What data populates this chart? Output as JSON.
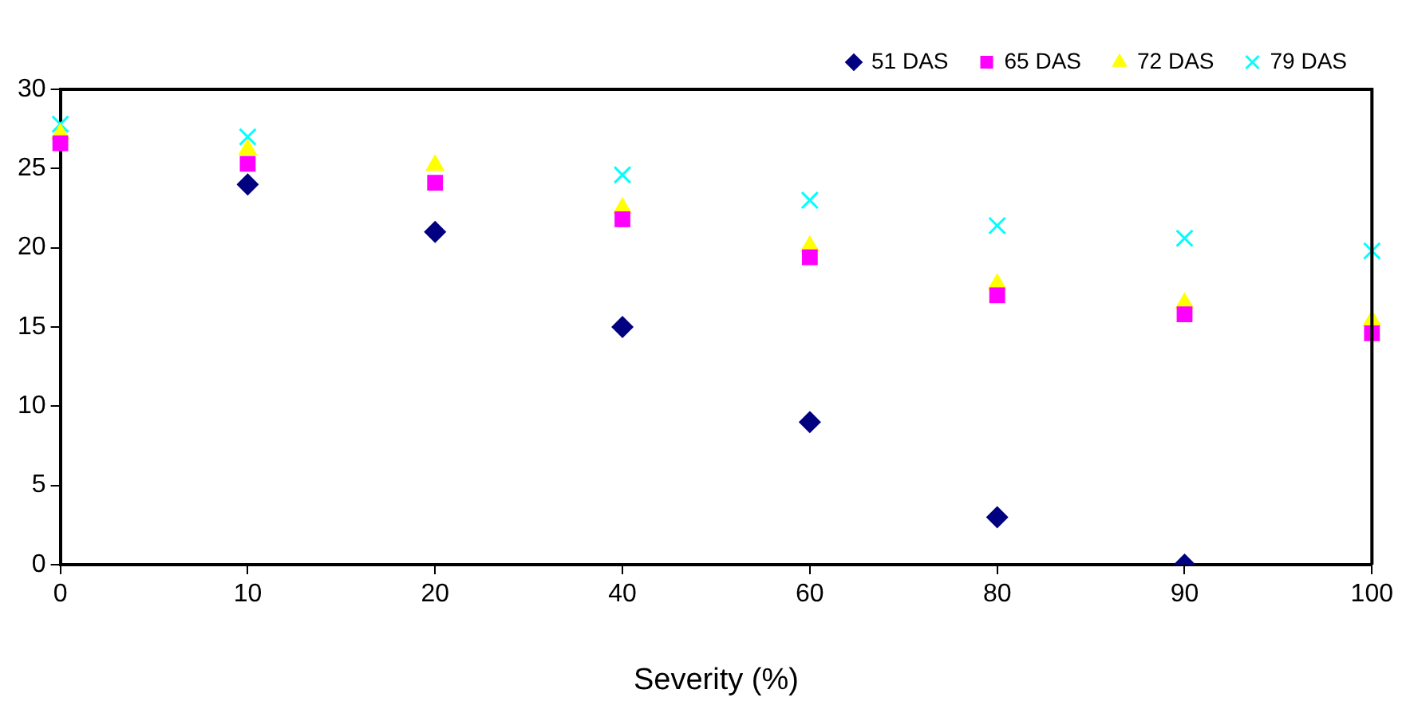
{
  "chart_data": {
    "type": "scatter",
    "xlabel": "Severity (%)",
    "categories": [
      "0",
      "10",
      "20",
      "40",
      "60",
      "80",
      "90",
      "100"
    ],
    "series": [
      {
        "name": "51 DAS",
        "color": "#000080",
        "marker": "diamond",
        "values": [
          null,
          24,
          21,
          15,
          9,
          3,
          0,
          null
        ]
      },
      {
        "name": "65 DAS",
        "color": "#ff00ff",
        "marker": "square",
        "values": [
          26.6,
          25.3,
          24.1,
          21.8,
          19.4,
          17.0,
          15.8,
          14.6
        ]
      },
      {
        "name": "72 DAS",
        "color": "#ffff00",
        "marker": "triangle",
        "values": [
          27.2,
          26.2,
          25.2,
          22.5,
          20.1,
          17.7,
          16.5,
          15.4
        ]
      },
      {
        "name": "79 DAS",
        "color": "#00ffff",
        "marker": "cross",
        "values": [
          27.8,
          27.0,
          null,
          24.6,
          23.0,
          21.4,
          20.6,
          19.8
        ]
      }
    ],
    "ylim": [
      0,
      30
    ],
    "yticks": [
      0,
      5,
      10,
      15,
      20,
      25,
      30
    ],
    "grid": false,
    "legend": "top right"
  }
}
